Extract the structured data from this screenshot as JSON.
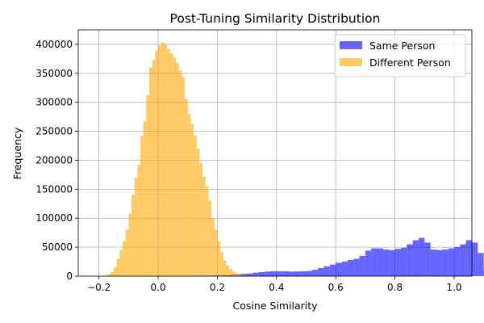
{
  "chart_data": {
    "type": "bar",
    "title": "Post-Tuning Similarity Distribution",
    "xlabel": "Cosine Similarity",
    "ylabel": "Frequency",
    "xlim": [
      -0.27,
      1.06
    ],
    "ylim": [
      0,
      425000
    ],
    "xticks": [
      -0.2,
      0.0,
      0.2,
      0.4,
      0.6,
      0.8,
      1.0
    ],
    "xtick_labels": [
      "−0.2",
      "0.0",
      "0.2",
      "0.4",
      "0.6",
      "0.8",
      "1.0"
    ],
    "yticks": [
      0,
      50000,
      100000,
      150000,
      200000,
      250000,
      300000,
      350000,
      400000
    ],
    "ytick_labels": [
      "0",
      "50000",
      "100000",
      "150000",
      "200000",
      "250000",
      "300000",
      "350000",
      "400000"
    ],
    "grid": true,
    "legend_position": "top-right",
    "series": [
      {
        "name": "Same Person",
        "color": "#0000ff",
        "alpha": 0.6,
        "bin_start": 0.0,
        "bin_width": 0.02,
        "values": [
          0,
          0,
          0,
          0,
          200,
          300,
          500,
          700,
          1000,
          1300,
          1700,
          2200,
          2800,
          3400,
          4000,
          4600,
          6000,
          7000,
          8000,
          8500,
          8500,
          8500,
          8000,
          8200,
          8500,
          9000,
          11000,
          14000,
          17000,
          20000,
          23000,
          25000,
          28000,
          30000,
          35000,
          44000,
          48000,
          48000,
          46000,
          45000,
          47000,
          49000,
          55000,
          62000,
          66000,
          58000,
          46000,
          45000,
          46000,
          48000,
          50000,
          55000,
          62000,
          58000,
          40000,
          10000
        ]
      },
      {
        "name": "Different Person",
        "color": "#ffa500",
        "alpha": 0.6,
        "bin_start": -0.2,
        "bin_width": 0.01,
        "values": [
          500,
          800,
          1500,
          3000,
          7000,
          15000,
          30000,
          45000,
          60000,
          80000,
          108000,
          140000,
          170000,
          192000,
          242000,
          268000,
          312000,
          360000,
          373000,
          390000,
          398000,
          403000,
          400000,
          392000,
          385000,
          377000,
          368000,
          355000,
          343000,
          305000,
          280000,
          263000,
          243000,
          220000,
          195000,
          172000,
          155000,
          130000,
          100000,
          80000,
          60000,
          42000,
          27000,
          18000,
          12000,
          8000,
          5000,
          3000,
          1500,
          800
        ]
      }
    ]
  }
}
